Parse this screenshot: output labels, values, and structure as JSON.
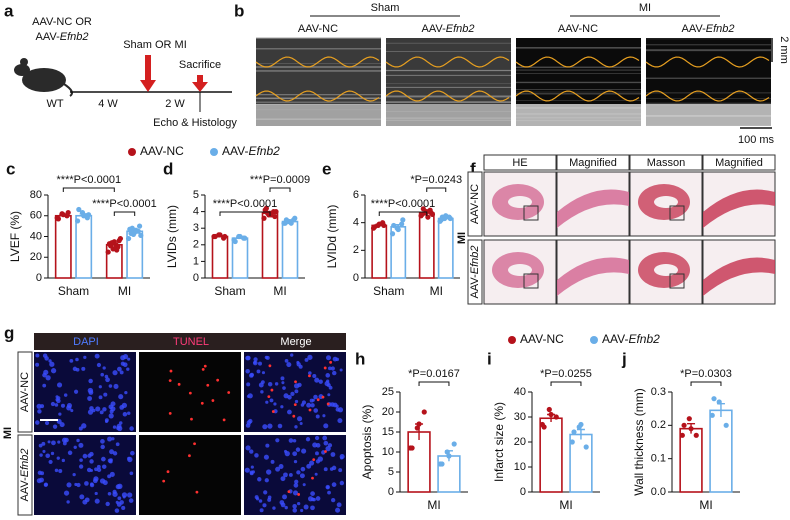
{
  "panel_a": {
    "label": "a",
    "treatment": "AAV-NC OR",
    "treatment_2": "AAV-Efnb2",
    "strain": "WT",
    "surgery": "Sham OR MI",
    "endpoint": "Sacrifice",
    "interval_1": "4 W",
    "interval_2": "2 W",
    "readout": "Echo & Histology"
  },
  "panel_b": {
    "label": "b",
    "groups": [
      "Sham",
      "MI"
    ],
    "columns": [
      "AAV-NC",
      "AAV-Efnb2",
      "AAV-NC",
      "AAV-Efnb2"
    ],
    "scale_y": "2 mm",
    "scale_x": "100 ms"
  },
  "panel_f": {
    "label": "f",
    "columns": [
      "HE",
      "Magnified",
      "Masson",
      "Magnified"
    ],
    "rows": [
      "AAV-NC",
      "AAV-Efnb2"
    ],
    "group": "MI"
  },
  "panel_g": {
    "label": "g",
    "columns": [
      "DAPI",
      "TUNEL",
      "Merge"
    ],
    "rows": [
      "AAV-NC",
      "AAV-Efnb2"
    ],
    "group": "MI"
  },
  "chart_data": [
    {
      "type": "bar",
      "label": "c",
      "y_label": "LVEF (%)",
      "categories": [
        "Sham",
        "MI"
      ],
      "ylim": [
        0,
        80
      ],
      "yticks": [
        0,
        20,
        40,
        60,
        80
      ],
      "comparisons": [
        "****P<0.0001",
        "****P<0.0001"
      ],
      "series": [
        {
          "name": "AAV-NC",
          "color": "#b5121b",
          "values": [
            60,
            32
          ],
          "errors": [
            1.2,
            1.5
          ],
          "points": [
            [
              58,
              62,
              60,
              57,
              61,
              63
            ],
            [
              25,
              28,
              30,
              33,
              35,
              36,
              31,
              29,
              38,
              34,
              27
            ]
          ]
        },
        {
          "name": "AAV-Efnb2",
          "color": "#6aaee8",
          "values": [
            60,
            45
          ],
          "errors": [
            1.8,
            1.4
          ],
          "points": [
            [
              55,
              63,
              58,
              66,
              60,
              61
            ],
            [
              38,
              42,
              45,
              47,
              44,
              50,
              43,
              46,
              41,
              48
            ]
          ]
        }
      ]
    },
    {
      "type": "bar",
      "label": "d",
      "y_label": "LVIDs (mm)",
      "categories": [
        "Sham",
        "MI"
      ],
      "ylim": [
        0,
        5
      ],
      "yticks": [
        0,
        1,
        2,
        3,
        4,
        5
      ],
      "comparisons": [
        "***P=0.0009",
        "****P<0.0001"
      ],
      "series": [
        {
          "name": "AAV-NC",
          "color": "#b5121b",
          "values": [
            2.5,
            3.9
          ],
          "errors": [
            0.04,
            0.07
          ],
          "points": [
            [
              2.5,
              2.6,
              2.4,
              2.5,
              2.6,
              2.5
            ],
            [
              3.6,
              3.8,
              4.0,
              4.1,
              3.9,
              3.7,
              4.2,
              3.8,
              4.0,
              3.9
            ]
          ]
        },
        {
          "name": "AAV-Efnb2",
          "color": "#6aaee8",
          "values": [
            2.4,
            3.4
          ],
          "errors": [
            0.05,
            0.04
          ],
          "points": [
            [
              2.3,
              2.5,
              2.4,
              2.2,
              2.5,
              2.4
            ],
            [
              3.3,
              3.4,
              3.5,
              3.3,
              3.4,
              3.6,
              3.5,
              3.3
            ]
          ]
        }
      ]
    },
    {
      "type": "bar",
      "label": "e",
      "y_label": "LVIDd (mm)",
      "categories": [
        "Sham",
        "MI"
      ],
      "ylim": [
        0,
        6
      ],
      "yticks": [
        0,
        2,
        4,
        6
      ],
      "comparisons": [
        "*P=0.0243",
        "****P<0.0001"
      ],
      "series": [
        {
          "name": "AAV-NC",
          "color": "#b5121b",
          "values": [
            3.8,
            4.7
          ],
          "errors": [
            0.07,
            0.05
          ],
          "points": [
            [
              3.6,
              3.8,
              4.0,
              3.7,
              3.9,
              3.8
            ],
            [
              4.5,
              4.7,
              4.9,
              4.6,
              4.8,
              4.7,
              5.0,
              4.4,
              4.6
            ]
          ]
        },
        {
          "name": "AAV-Efnb2",
          "color": "#6aaee8",
          "values": [
            3.7,
            4.3
          ],
          "errors": [
            0.15,
            0.04
          ],
          "points": [
            [
              3.2,
              3.6,
              3.9,
              3.8,
              3.5,
              4.2
            ],
            [
              4.1,
              4.3,
              4.4,
              4.2,
              4.5,
              4.3,
              4.4
            ]
          ]
        }
      ]
    },
    {
      "type": "bar",
      "label": "h",
      "y_label": "Apoptosis (%)",
      "categories": [
        "MI"
      ],
      "ylim": [
        0,
        25
      ],
      "yticks": [
        0,
        5,
        10,
        15,
        20,
        25
      ],
      "comparisons": [
        "*P=0.0167"
      ],
      "series": [
        {
          "name": "AAV-NC",
          "color": "#b5121b",
          "values": [
            15
          ],
          "errors": [
            2
          ],
          "points": [
            [
              11,
              16,
              20,
              11,
              17
            ]
          ]
        },
        {
          "name": "AAV-Efnb2",
          "color": "#6aaee8",
          "values": [
            9
          ],
          "errors": [
            1.3
          ],
          "points": [
            [
              7,
              10,
              12,
              7,
              9
            ]
          ]
        }
      ]
    },
    {
      "type": "bar",
      "label": "i",
      "y_label": "Infarct size (%)",
      "categories": [
        "MI"
      ],
      "ylim": [
        0,
        40
      ],
      "yticks": [
        0,
        10,
        20,
        30,
        40
      ],
      "comparisons": [
        "*P=0.0255"
      ],
      "series": [
        {
          "name": "AAV-NC",
          "color": "#b5121b",
          "values": [
            29.5
          ],
          "errors": [
            1.5
          ],
          "points": [
            [
              27,
              33,
              30,
              26,
              31
            ]
          ]
        },
        {
          "name": "AAV-Efnb2",
          "color": "#6aaee8",
          "values": [
            23
          ],
          "errors": [
            2
          ],
          "points": [
            [
              20,
              26,
              18,
              24,
              27
            ]
          ]
        }
      ]
    },
    {
      "type": "bar",
      "label": "j",
      "y_label": "Wall thickness (mm)",
      "categories": [
        "MI"
      ],
      "ylim": [
        0,
        0.3
      ],
      "yticks": [
        {
          "value": 0,
          "label": "0.0"
        },
        0.1,
        0.2,
        0.3
      ],
      "comparisons": [
        "*P=0.0303"
      ],
      "series": [
        {
          "name": "AAV-NC",
          "color": "#b5121b",
          "values": [
            0.19
          ],
          "errors": [
            0.015
          ],
          "points": [
            [
              0.17,
              0.22,
              0.17,
              0.2,
              0.19
            ]
          ]
        },
        {
          "name": "AAV-Efnb2",
          "color": "#6aaee8",
          "values": [
            0.245
          ],
          "errors": [
            0.02
          ],
          "points": [
            [
              0.23,
              0.27,
              0.2,
              0.28
            ]
          ]
        }
      ]
    }
  ]
}
